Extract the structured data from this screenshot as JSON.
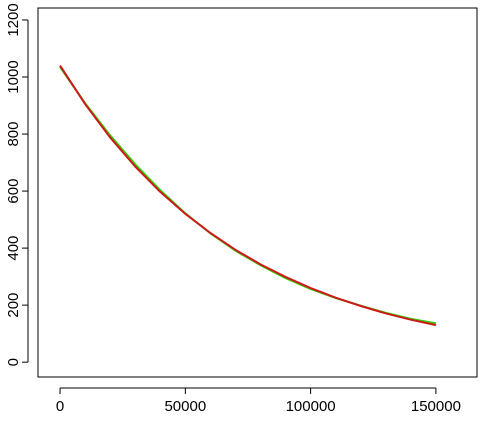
{
  "chart_data": {
    "type": "line",
    "x": [
      0,
      10000,
      20000,
      30000,
      40000,
      50000,
      60000,
      70000,
      80000,
      90000,
      100000,
      110000,
      120000,
      130000,
      140000,
      150000
    ],
    "series": [
      {
        "color": "#33cc00",
        "values": [
          1035,
          908,
          795,
          694,
          603,
          522,
          452,
          391,
          340,
          295,
          257,
          225,
          198,
          173,
          152,
          136
        ]
      },
      {
        "color": "#cc1a1a",
        "values": [
          1040,
          905,
          788,
          686,
          597,
          520,
          453,
          394,
          343,
          299,
          260,
          226,
          197,
          171,
          149,
          130
        ]
      }
    ],
    "xlim": [
      -8800,
      166400
    ],
    "ylim": [
      -52,
      1242
    ],
    "xticks": [
      0,
      50000,
      100000,
      150000
    ],
    "yticks": [
      0,
      200,
      400,
      600,
      800,
      1000,
      1200
    ]
  }
}
